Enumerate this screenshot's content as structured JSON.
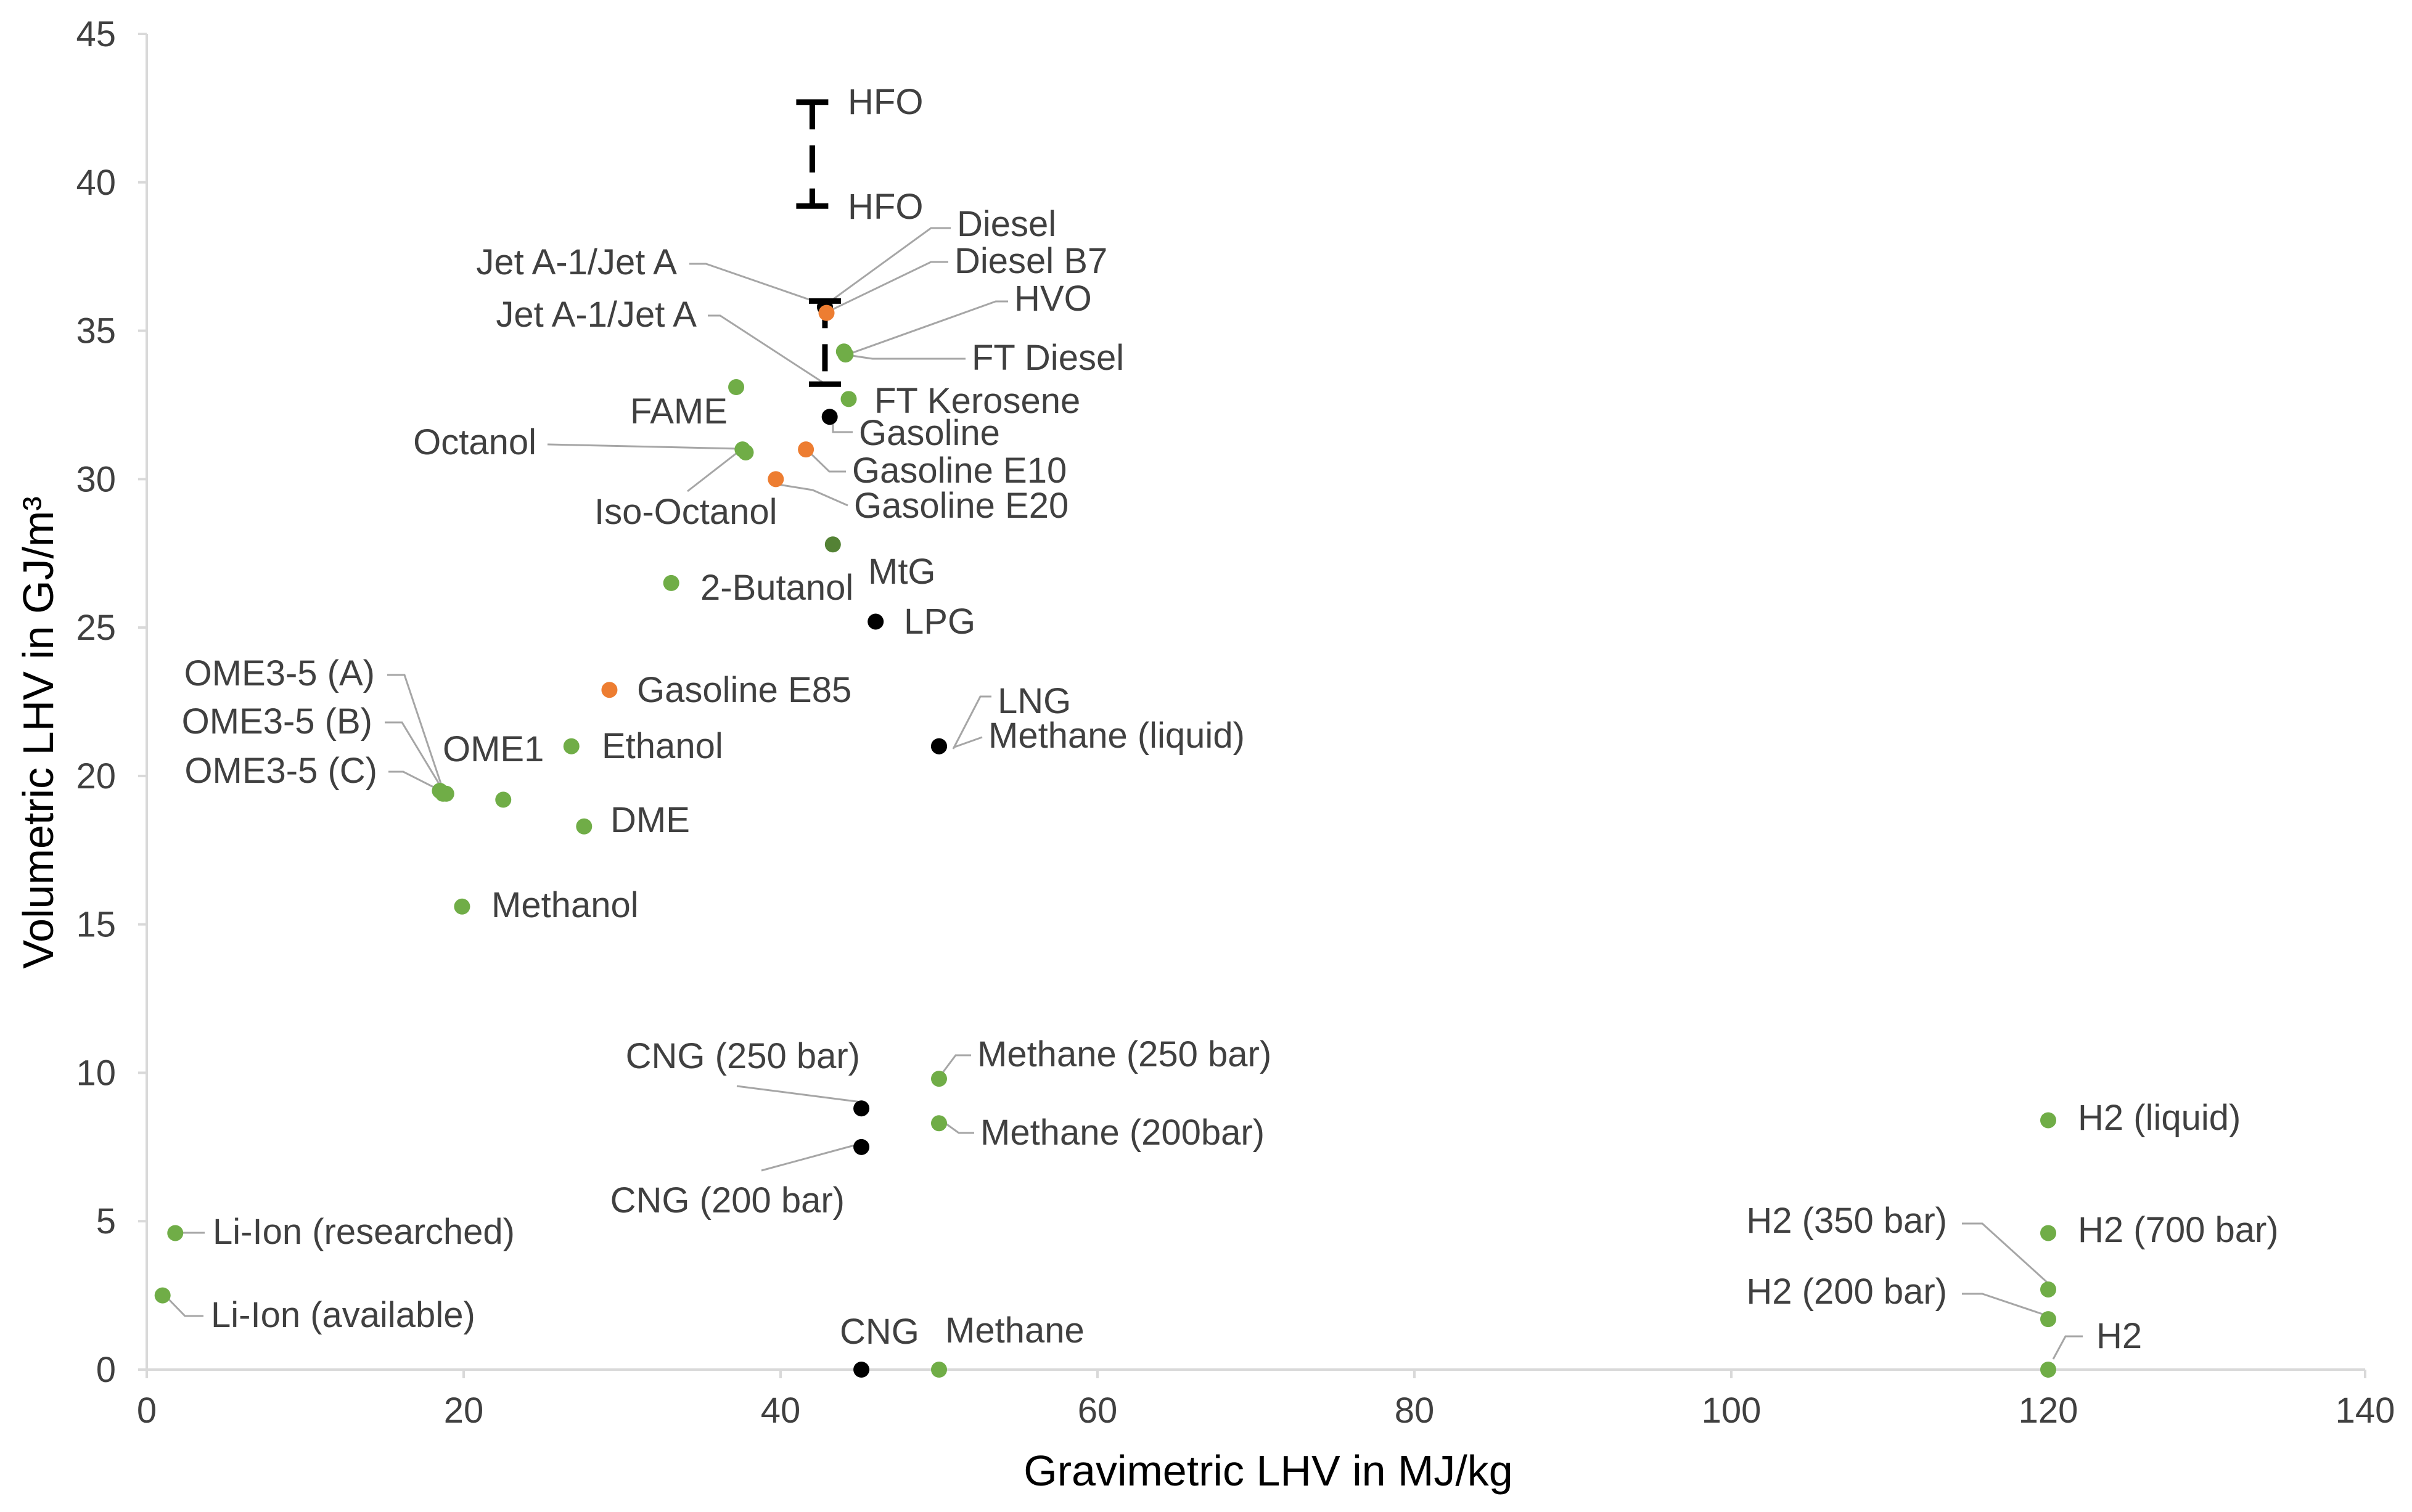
{
  "chart_data": {
    "type": "scatter",
    "title": "",
    "xlabel": "Gravimetric LHV in MJ/kg",
    "ylabel": "Volumetric LHV in GJ/m³",
    "xlim": [
      0,
      140
    ],
    "ylim": [
      0,
      45
    ],
    "x_ticks": [
      "0",
      "20",
      "40",
      "60",
      "80",
      "100",
      "120",
      "140"
    ],
    "y_ticks": [
      "0",
      "5",
      "10",
      "15",
      "20",
      "25",
      "30",
      "35",
      "40",
      "45"
    ],
    "colors": {
      "green": "#70AD47",
      "dark_green": "#548235",
      "orange": "#ED7D31",
      "black": "#000000",
      "leader": "#A6A6A6",
      "axis": "#D9D9D9",
      "text": "#404040"
    },
    "ranges": [
      {
        "name": "HFO range",
        "x": 42.0,
        "y_low": 39.2,
        "y_high": 42.7
      },
      {
        "name": "Jet A-1 range",
        "x": 42.8,
        "y_low": 33.2,
        "y_high": 36.0
      }
    ],
    "points": [
      {
        "label": "Li-Ion (researched)",
        "x": 1.8,
        "y": 4.6,
        "color": "green"
      },
      {
        "label": "Li-Ion (available)",
        "x": 1.0,
        "y": 2.5,
        "color": "green"
      },
      {
        "label": "OME3-5 (A)",
        "x": 18.5,
        "y": 19.5,
        "color": "green"
      },
      {
        "label": "OME3-5 (B)",
        "x": 18.7,
        "y": 19.4,
        "color": "green"
      },
      {
        "label": "OME3-5 (C)",
        "x": 18.9,
        "y": 19.4,
        "color": "green"
      },
      {
        "label": "OME1",
        "x": 22.5,
        "y": 19.2,
        "color": "green"
      },
      {
        "label": "Methanol",
        "x": 19.9,
        "y": 15.6,
        "color": "green"
      },
      {
        "label": "Ethanol",
        "x": 26.8,
        "y": 21.0,
        "color": "green"
      },
      {
        "label": "DME",
        "x": 27.6,
        "y": 18.3,
        "color": "green"
      },
      {
        "label": "Gasoline E85",
        "x": 29.2,
        "y": 22.9,
        "color": "orange"
      },
      {
        "label": "2-Butanol",
        "x": 33.1,
        "y": 26.5,
        "color": "green"
      },
      {
        "label": "FAME",
        "x": 37.2,
        "y": 33.1,
        "color": "green"
      },
      {
        "label": "Octanol",
        "x": 37.6,
        "y": 31.0,
        "color": "green"
      },
      {
        "label": "Iso-Octanol",
        "x": 37.8,
        "y": 30.9,
        "color": "green"
      },
      {
        "label": "Gasoline E20",
        "x": 39.7,
        "y": 30.0,
        "color": "orange"
      },
      {
        "label": "Gasoline E10",
        "x": 41.6,
        "y": 31.0,
        "color": "orange"
      },
      {
        "label": "Gasoline",
        "x": 43.1,
        "y": 32.1,
        "color": "black"
      },
      {
        "label": "Diesel",
        "x": 42.8,
        "y": 35.8,
        "color": "black"
      },
      {
        "label": "Diesel B7",
        "x": 42.9,
        "y": 35.6,
        "color": "orange"
      },
      {
        "label": "HVO",
        "x": 44.0,
        "y": 34.3,
        "color": "green"
      },
      {
        "label": "FT Diesel",
        "x": 44.1,
        "y": 34.2,
        "color": "green"
      },
      {
        "label": "FT Kerosene",
        "x": 44.3,
        "y": 32.7,
        "color": "green"
      },
      {
        "label": "MtG",
        "x": 43.3,
        "y": 27.8,
        "color": "dark_green"
      },
      {
        "label": "LPG",
        "x": 46.0,
        "y": 25.2,
        "color": "black"
      },
      {
        "label": "LNG",
        "x": 50.0,
        "y": 21.0,
        "color": "black"
      },
      {
        "label": "Methane (liquid)",
        "x": 50.0,
        "y": 21.0,
        "color": "black"
      },
      {
        "label": "CNG (250 bar)",
        "x": 45.1,
        "y": 8.8,
        "color": "black"
      },
      {
        "label": "CNG (200 bar)",
        "x": 45.1,
        "y": 7.5,
        "color": "black"
      },
      {
        "label": "Methane (250 bar)",
        "x": 50.0,
        "y": 9.8,
        "color": "green"
      },
      {
        "label": "Methane (200bar)",
        "x": 50.0,
        "y": 8.3,
        "color": "green"
      },
      {
        "label": "CNG",
        "x": 45.1,
        "y": 0.0,
        "color": "black"
      },
      {
        "label": "Methane",
        "x": 50.0,
        "y": 0.0,
        "color": "green"
      },
      {
        "label": "H2 (liquid)",
        "x": 120.0,
        "y": 8.4,
        "color": "green"
      },
      {
        "label": "H2 (700 bar)",
        "x": 120.0,
        "y": 4.6,
        "color": "green"
      },
      {
        "label": "H2 (350 bar)",
        "x": 120.0,
        "y": 2.7,
        "color": "green"
      },
      {
        "label": "H2 (200 bar)",
        "x": 120.0,
        "y": 1.7,
        "color": "green"
      },
      {
        "label": "H2",
        "x": 120.0,
        "y": 0.0,
        "color": "green"
      }
    ],
    "labels": [
      {
        "text": "HFO",
        "target_x": 42.0,
        "target_y": 42.7,
        "ref": "HFO range top"
      },
      {
        "text": "HFO",
        "target_x": 42.0,
        "target_y": 39.2,
        "ref": "HFO range bottom"
      },
      {
        "text": "Jet A-1/Jet A",
        "target_x": 42.8,
        "target_y": 36.0,
        "ref": "Jet A-1 range top"
      },
      {
        "text": "Jet A-1/Jet A",
        "target_x": 42.8,
        "target_y": 33.2,
        "ref": "Jet A-1 range bottom"
      }
    ]
  }
}
